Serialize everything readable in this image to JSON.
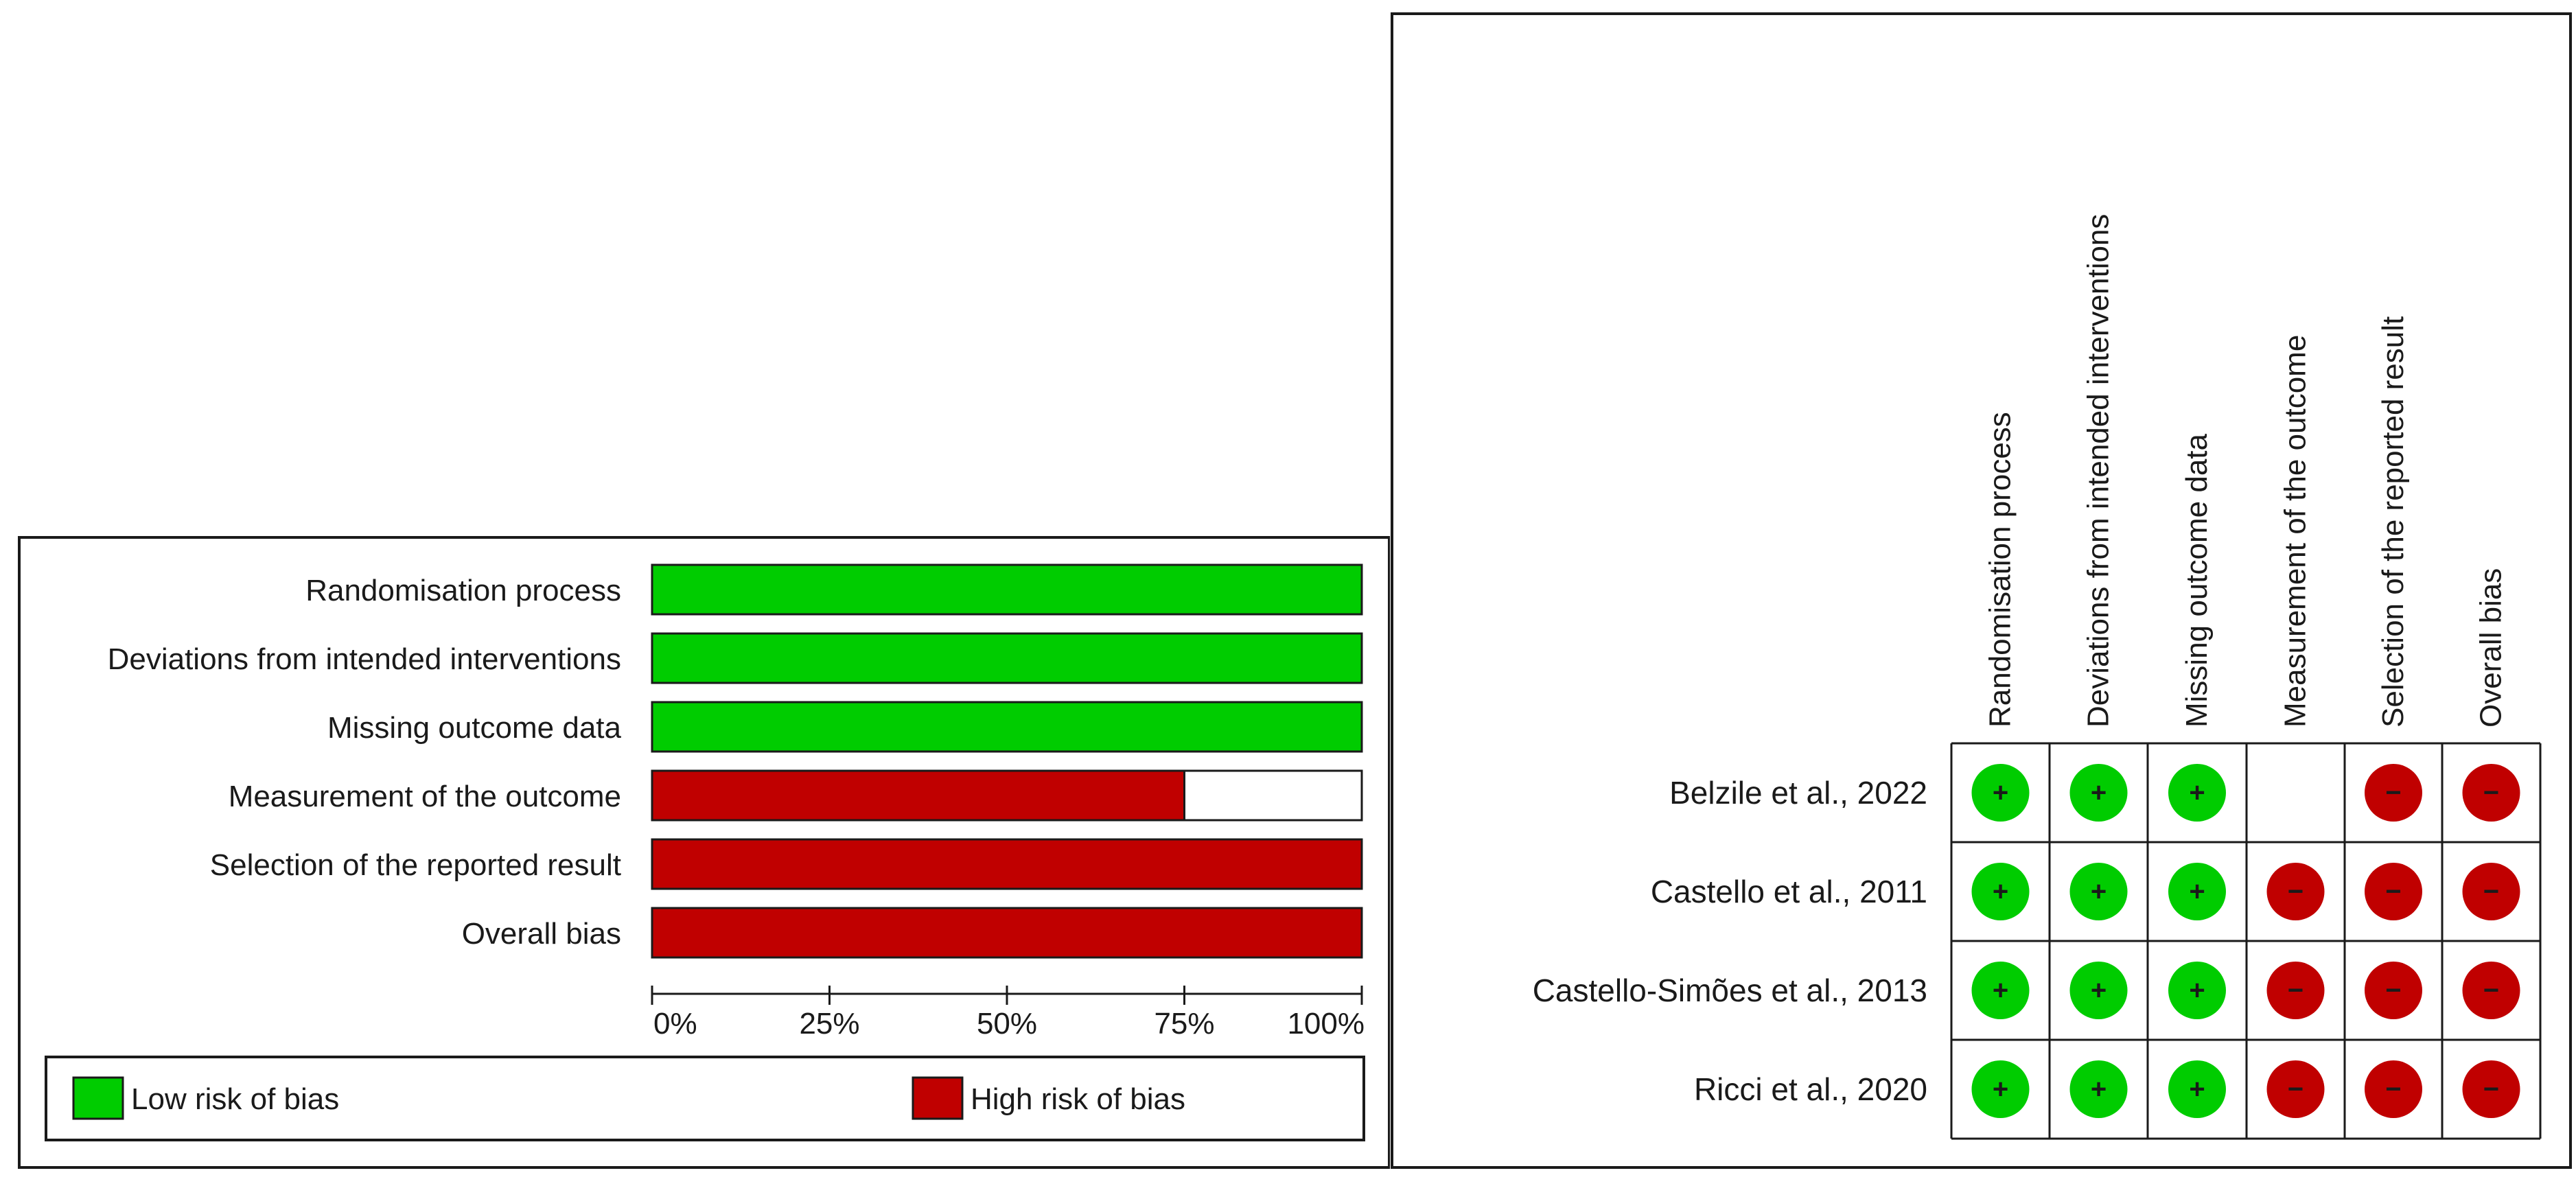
{
  "colors": {
    "low": "#00cc00",
    "high": "#c00000",
    "some": "#ffffff",
    "border": "#1a1a1a"
  },
  "chart_data": [
    {
      "type": "bar",
      "orientation": "horizontal",
      "stacked": true,
      "categories": [
        "Randomisation process",
        "Deviations from intended interventions",
        "Missing outcome data",
        "Measurement of the outcome",
        "Selection of the reported result",
        "Overall bias"
      ],
      "series": [
        {
          "name": "Low risk of bias",
          "color": "#00cc00",
          "values": [
            100,
            100,
            100,
            0,
            0,
            0
          ]
        },
        {
          "name": "High risk of bias",
          "color": "#c00000",
          "values": [
            0,
            0,
            0,
            75,
            100,
            100
          ]
        }
      ],
      "xlim": [
        0,
        100
      ],
      "xticks": [
        "0%",
        "25%",
        "50%",
        "75%",
        "100%"
      ],
      "legend": {
        "position": "bottom",
        "items": [
          {
            "label": "Low risk of bias",
            "color": "#00cc00"
          },
          {
            "label": "High risk of bias",
            "color": "#c00000"
          }
        ]
      }
    },
    {
      "type": "table",
      "columns": [
        "Randomisation process",
        "Deviations from intended interventions",
        "Missing outcome data",
        "Measurement of the outcome",
        "Selection of the reported result",
        "Overall bias"
      ],
      "rows": [
        {
          "study": "Belzile et al., 2022",
          "judgements": [
            "+",
            "+",
            "+",
            "",
            "−",
            "−"
          ]
        },
        {
          "study": "Castello et al., 2011",
          "judgements": [
            "+",
            "+",
            "+",
            "−",
            "−",
            "−"
          ]
        },
        {
          "study": "Castello-Simões et al., 2013",
          "judgements": [
            "+",
            "+",
            "+",
            "−",
            "−",
            "−"
          ]
        },
        {
          "study": "Ricci et al., 2020",
          "judgements": [
            "+",
            "+",
            "+",
            "−",
            "−",
            "−"
          ]
        }
      ]
    }
  ]
}
